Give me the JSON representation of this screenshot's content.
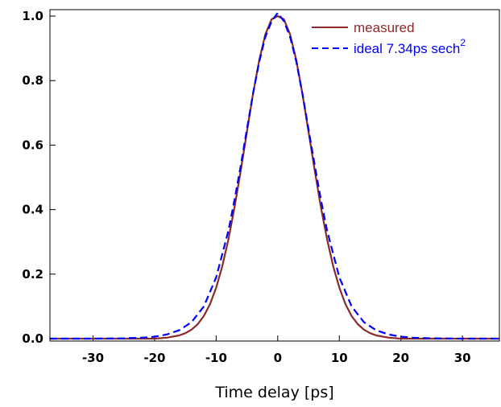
{
  "chart_data": {
    "type": "line",
    "title": "",
    "xlabel": "Time delay [ps]",
    "ylabel": "",
    "xlim": [
      -37,
      36
    ],
    "ylim": [
      0.0,
      1.0
    ],
    "xticks": [
      -30,
      -20,
      -10,
      0,
      10,
      20,
      30
    ],
    "yticks": [
      0.0,
      0.2,
      0.4,
      0.6,
      0.8,
      1.0
    ],
    "xtick_labels": [
      "-30",
      "-20",
      "-10",
      "0",
      "10",
      "20",
      "30"
    ],
    "ytick_labels": [
      "0.0",
      "0.2",
      "0.4",
      "0.6",
      "0.8",
      "1.0"
    ],
    "grid": false,
    "legend_position": "top-right",
    "series": [
      {
        "name": "measured",
        "style": "solid",
        "color": "#8B2A2A",
        "x": [
          -37,
          -30,
          -25,
          -20,
          -18,
          -16,
          -15,
          -14,
          -13,
          -12,
          -11,
          -10,
          -9,
          -8,
          -7,
          -6,
          -5,
          -4,
          -3,
          -2,
          -1,
          0,
          1,
          2,
          3,
          4,
          5,
          6,
          7,
          8,
          9,
          10,
          11,
          12,
          13,
          14,
          15,
          16,
          18,
          20,
          25,
          30,
          36
        ],
        "y": [
          0.0,
          0.0,
          0.0,
          0.0,
          0.003,
          0.01,
          0.017,
          0.028,
          0.045,
          0.07,
          0.107,
          0.158,
          0.225,
          0.309,
          0.409,
          0.522,
          0.642,
          0.76,
          0.864,
          0.944,
          0.99,
          1.0,
          0.99,
          0.944,
          0.864,
          0.76,
          0.642,
          0.522,
          0.409,
          0.309,
          0.225,
          0.158,
          0.107,
          0.07,
          0.045,
          0.028,
          0.017,
          0.01,
          0.003,
          0.0,
          0.0,
          0.0,
          0.0
        ]
      },
      {
        "name": "ideal 7.34ps sech",
        "name_superscript": "2",
        "style": "dashed",
        "color": "#0000FF",
        "x": [
          -37,
          -30,
          -25,
          -22,
          -20,
          -18,
          -16,
          -14,
          -12,
          -10,
          -8,
          -7,
          -6,
          -5,
          -4,
          -3,
          -2,
          -1,
          0,
          1,
          2,
          3,
          4,
          5,
          6,
          7,
          8,
          10,
          12,
          14,
          16,
          18,
          20,
          22,
          25,
          30,
          36
        ],
        "y": [
          0.0,
          0.0,
          0.001,
          0.003,
          0.006,
          0.013,
          0.026,
          0.051,
          0.1,
          0.19,
          0.336,
          0.432,
          0.538,
          0.65,
          0.76,
          0.859,
          0.936,
          0.984,
          1.01,
          0.984,
          0.936,
          0.859,
          0.76,
          0.65,
          0.538,
          0.432,
          0.336,
          0.19,
          0.1,
          0.051,
          0.026,
          0.013,
          0.006,
          0.003,
          0.001,
          0.0,
          0.0
        ]
      }
    ]
  }
}
